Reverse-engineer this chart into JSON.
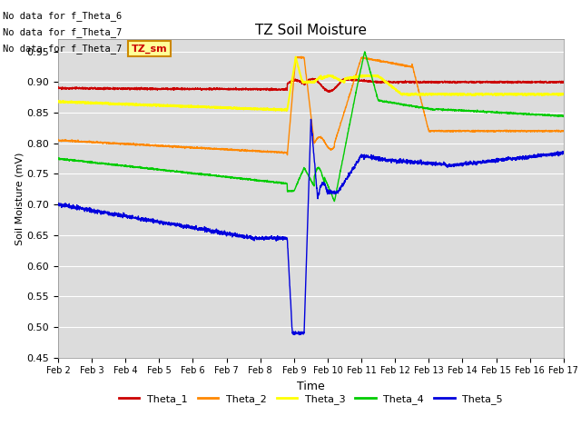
{
  "title": "TZ Soil Moisture",
  "xlabel": "Time",
  "ylabel": "Soil Moisture (mV)",
  "ylim": [
    0.45,
    0.97
  ],
  "yticks": [
    0.45,
    0.5,
    0.55,
    0.6,
    0.65,
    0.7,
    0.75,
    0.8,
    0.85,
    0.9,
    0.95
  ],
  "x_labels": [
    "Feb 2",
    "Feb 3",
    "Feb 4",
    "Feb 5",
    "Feb 6",
    "Feb 7",
    "Feb 8",
    "Feb 9",
    "Feb 10",
    "Feb 11",
    "Feb 12",
    "Feb 13",
    "Feb 14",
    "Feb 15",
    "Feb 16",
    "Feb 17"
  ],
  "colors": {
    "Theta_1": "#cc0000",
    "Theta_2": "#ff8800",
    "Theta_3": "#ffff00",
    "Theta_4": "#00cc00",
    "Theta_5": "#0000dd"
  },
  "no_data_labels": [
    "No data for f_Theta_6",
    "No data for f_Theta_7",
    "No data for f_Theta_7"
  ],
  "legend_label": "TZ_sm",
  "bg_color": "#dcdcdc",
  "grid_color": "#ffffff",
  "figsize": [
    6.4,
    4.8
  ],
  "dpi": 100
}
